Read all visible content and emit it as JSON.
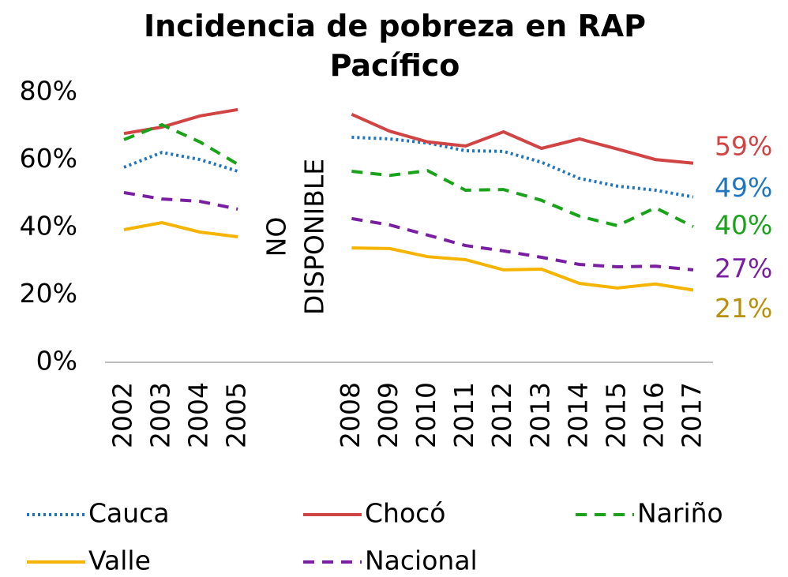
{
  "chart_data": {
    "type": "line",
    "title": "Incidencia de pobreza en RAP Pacífico",
    "annotation": [
      "NO",
      "DISPONIBLE"
    ],
    "categories": [
      "2002",
      "2003",
      "2004",
      "2005",
      null,
      null,
      "2008",
      "2009",
      "2010",
      "2011",
      "2012",
      "2013",
      "2014",
      "2015",
      "2016",
      "2017"
    ],
    "ylim": [
      0,
      80
    ],
    "yticks": [
      {
        "value": 0,
        "label": "0%"
      },
      {
        "value": 20,
        "label": "20%"
      },
      {
        "value": 40,
        "label": "40%"
      },
      {
        "value": 60,
        "label": "60%"
      },
      {
        "value": 80,
        "label": "80%"
      }
    ],
    "grid": false,
    "legend": "bottom",
    "series": [
      {
        "name": "Cauca",
        "color": "#2075c0",
        "style": "dotted",
        "values": [
          57.8,
          62.2,
          60.1,
          56.6,
          null,
          null,
          66.7,
          66.2,
          65.0,
          62.7,
          62.5,
          59.3,
          54.5,
          52.2,
          51.0,
          49.0
        ],
        "value_labels": [
          null,
          null,
          null,
          null,
          null,
          null,
          null,
          null,
          null,
          null,
          null,
          null,
          null,
          null,
          null,
          "49%"
        ]
      },
      {
        "name": "Chocó",
        "color": "#d04444",
        "style": "solid",
        "values": [
          67.8,
          69.7,
          73.0,
          74.9,
          null,
          null,
          73.5,
          68.5,
          65.3,
          64.1,
          68.3,
          63.4,
          66.2,
          63.2,
          60.1,
          59.0
        ],
        "value_labels": [
          null,
          null,
          null,
          null,
          null,
          null,
          null,
          null,
          null,
          null,
          null,
          null,
          null,
          null,
          null,
          "59%"
        ]
      },
      {
        "name": "Nariño",
        "color": "#1aa31a",
        "style": "dashed",
        "values": [
          66.0,
          70.4,
          65.3,
          58.7,
          null,
          null,
          56.6,
          55.4,
          56.8,
          51.0,
          51.2,
          48.0,
          43.3,
          40.5,
          45.8,
          40.2
        ],
        "value_labels": [
          null,
          null,
          null,
          null,
          null,
          null,
          null,
          null,
          null,
          null,
          null,
          null,
          null,
          null,
          null,
          "40%"
        ]
      },
      {
        "name": "Valle",
        "color": "#f5b400",
        "style": "solid",
        "values": [
          39.3,
          41.4,
          38.6,
          37.2,
          null,
          null,
          33.9,
          33.7,
          31.3,
          30.4,
          27.4,
          27.6,
          23.4,
          22.0,
          23.2,
          21.4
        ],
        "value_labels": [
          null,
          null,
          null,
          null,
          null,
          null,
          null,
          null,
          null,
          null,
          null,
          null,
          null,
          null,
          null,
          "21%"
        ]
      },
      {
        "name": "Nacional",
        "color": "#7b1fa2",
        "style": "dashed",
        "values": [
          50.3,
          48.4,
          47.7,
          45.4,
          null,
          null,
          42.6,
          40.7,
          37.7,
          34.6,
          33.0,
          31.1,
          29.0,
          28.3,
          28.5,
          27.4
        ],
        "value_labels": [
          null,
          null,
          null,
          null,
          null,
          null,
          null,
          null,
          null,
          null,
          null,
          null,
          null,
          null,
          null,
          "27%"
        ]
      }
    ]
  }
}
